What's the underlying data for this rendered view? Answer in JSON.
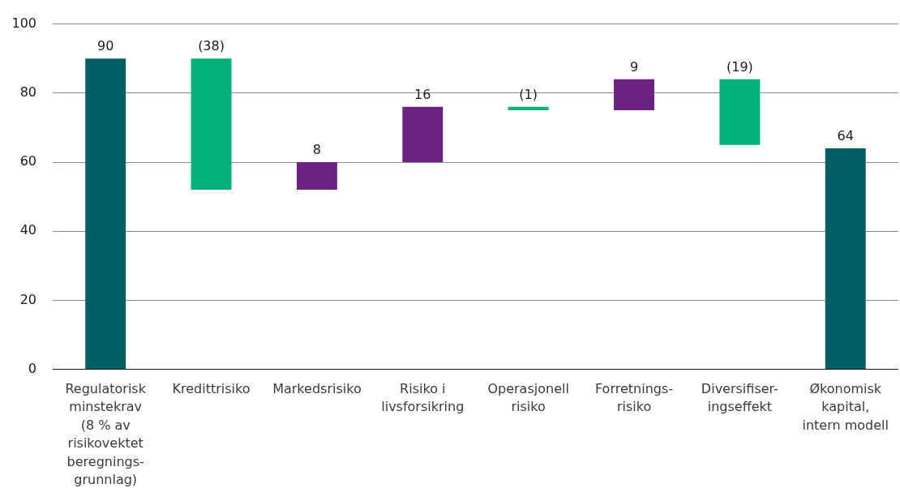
{
  "chart_data": {
    "type": "bar",
    "categories": [
      "Regulatorisk minstekrav (8 % av risikovektet beregnings-grunnlag)",
      "Kredittrisiko",
      "Markedsrisiko",
      "Risiko i livsforsikring",
      "Operasjonell risiko",
      "Forretnings-risiko",
      "Diversifiser-ingseffekt",
      "Økonomisk kapital, intern modell"
    ],
    "values": [
      90,
      -38,
      8,
      16,
      -1,
      9,
      -19,
      64
    ],
    "base": [
      0,
      90,
      52,
      60,
      76,
      75,
      84,
      0
    ],
    "colors": [
      "#005f66",
      "#00b27a",
      "#6b2280",
      "#6b2280",
      "#00b27a",
      "#6b2280",
      "#00b27a",
      "#005f66"
    ],
    "value_labels": [
      "90",
      "(38)",
      "8",
      "16",
      "(1)",
      "9",
      "(19)",
      "64"
    ],
    "ylim": [
      0,
      100
    ],
    "yticks": [
      0,
      20,
      40,
      60,
      80,
      100
    ],
    "grid": "y"
  }
}
